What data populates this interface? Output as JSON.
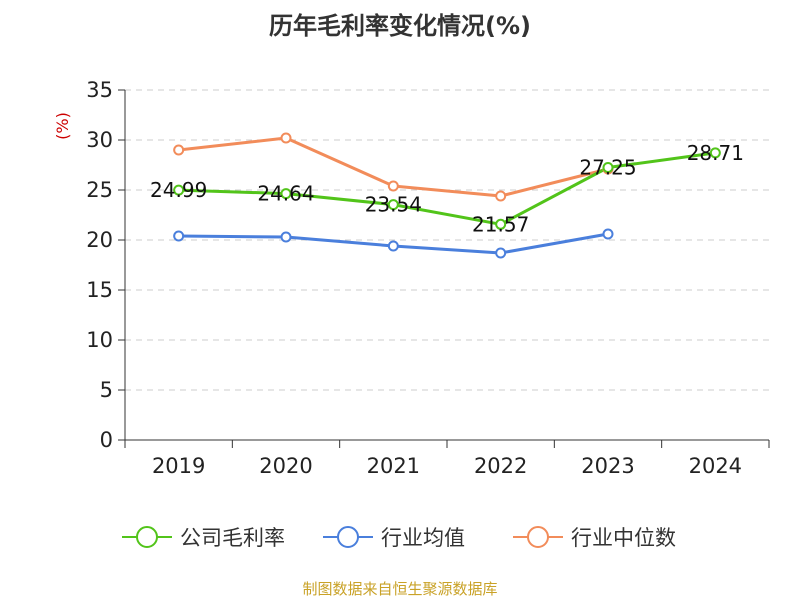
{
  "chart_data": {
    "type": "line",
    "title": "历年毛利率变化情况(%)",
    "ylabel": "(%)",
    "categories": [
      "2019",
      "2020",
      "2021",
      "2022",
      "2023",
      "2024"
    ],
    "ylim": [
      0,
      35
    ],
    "yticks": [
      0,
      5,
      10,
      15,
      20,
      25,
      30,
      35
    ],
    "grid": true,
    "legend_position": "bottom",
    "series": [
      {
        "name": "公司毛利率",
        "color": "#52c41a",
        "values": [
          24.99,
          24.64,
          23.54,
          21.57,
          27.25,
          28.71
        ],
        "labels": [
          "24.99",
          "24.64",
          "23.54",
          "21.57",
          "27.25",
          "28.71"
        ]
      },
      {
        "name": "行业均值",
        "color": "#4a7fdc",
        "values": [
          20.4,
          20.3,
          19.4,
          18.7,
          20.6,
          null
        ]
      },
      {
        "name": "行业中位数",
        "color": "#f28c5a",
        "values": [
          29.0,
          30.2,
          25.4,
          24.4,
          27.1,
          null
        ]
      }
    ]
  },
  "footer": {
    "source": "制图数据来自恒生聚源数据库",
    "color": "#c9a227"
  },
  "colors": {
    "axis": "#333333",
    "grid": "#cccccc",
    "unit": "#cc0000"
  }
}
